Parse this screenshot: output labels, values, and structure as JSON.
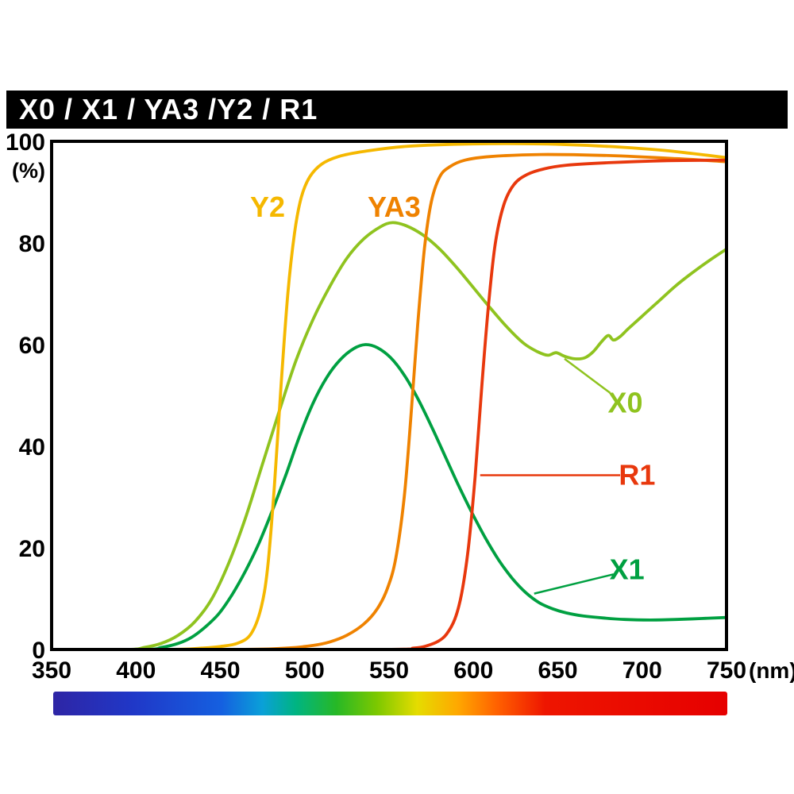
{
  "header": {
    "title": "X0 / X1 / YA3 /Y2 / R1"
  },
  "chart_data": {
    "type": "line",
    "title": "X0 / X1 / YA3 /Y2 / R1",
    "ylabel": "(%)",
    "x_unit": "(nm)",
    "xlim": [
      350,
      750
    ],
    "ylim": [
      0,
      100
    ],
    "x_ticks": [
      350,
      400,
      450,
      500,
      550,
      600,
      650,
      700,
      750
    ],
    "y_ticks": [
      0,
      20,
      40,
      60,
      80,
      100
    ],
    "grid": false,
    "legend": "inline-labels",
    "frame_color": "#000000",
    "series": [
      {
        "name": "X1",
        "color": "#00a041",
        "label": {
          "text": "X1",
          "nm": 691,
          "pct": 15.7
        },
        "leader": {
          "from": [
            636,
            11
          ],
          "to": [
            683,
            14.8
          ]
        },
        "points": [
          [
            350,
            0
          ],
          [
            405,
            0
          ],
          [
            415,
            0.4
          ],
          [
            425,
            1.2
          ],
          [
            433,
            2.4
          ],
          [
            441,
            4.4
          ],
          [
            449,
            7
          ],
          [
            457,
            10.8
          ],
          [
            465,
            15.5
          ],
          [
            473,
            21
          ],
          [
            481,
            27.5
          ],
          [
            489,
            34.5
          ],
          [
            497,
            42
          ],
          [
            505,
            48.5
          ],
          [
            513,
            53.5
          ],
          [
            521,
            57
          ],
          [
            529,
            59.2
          ],
          [
            536,
            60
          ],
          [
            543,
            59.4
          ],
          [
            551,
            57.4
          ],
          [
            559,
            54
          ],
          [
            567,
            49.4
          ],
          [
            575,
            44
          ],
          [
            583,
            38.2
          ],
          [
            591,
            32.4
          ],
          [
            599,
            27
          ],
          [
            607,
            22
          ],
          [
            615,
            17.6
          ],
          [
            623,
            14
          ],
          [
            631,
            11.2
          ],
          [
            639,
            9.2
          ],
          [
            647,
            8
          ],
          [
            655,
            7.2
          ],
          [
            665,
            6.6
          ],
          [
            677,
            6.2
          ],
          [
            690,
            5.9
          ],
          [
            705,
            5.8
          ],
          [
            720,
            5.9
          ],
          [
            735,
            6.1
          ],
          [
            750,
            6.3
          ]
        ]
      },
      {
        "name": "X0",
        "color": "#8fc31f",
        "label": {
          "text": "X0",
          "nm": 690,
          "pct": 48.5
        },
        "leader": {
          "from": [
            654,
            57.2
          ],
          "to": [
            681,
            50.5
          ]
        },
        "points": [
          [
            350,
            0
          ],
          [
            395,
            0
          ],
          [
            405,
            0.4
          ],
          [
            415,
            1.2
          ],
          [
            425,
            2.8
          ],
          [
            435,
            5.5
          ],
          [
            445,
            10
          ],
          [
            455,
            17
          ],
          [
            465,
            26
          ],
          [
            475,
            36.5
          ],
          [
            485,
            47
          ],
          [
            495,
            57
          ],
          [
            505,
            65
          ],
          [
            515,
            71.5
          ],
          [
            525,
            77
          ],
          [
            535,
            80.8
          ],
          [
            545,
            83.2
          ],
          [
            552,
            84
          ],
          [
            560,
            83.4
          ],
          [
            570,
            81.6
          ],
          [
            580,
            78.8
          ],
          [
            590,
            75.2
          ],
          [
            600,
            71.2
          ],
          [
            610,
            67.2
          ],
          [
            620,
            63.4
          ],
          [
            630,
            60.2
          ],
          [
            638,
            58.6
          ],
          [
            644,
            57.9
          ],
          [
            649,
            58.4
          ],
          [
            654,
            57.7
          ],
          [
            660,
            57.2
          ],
          [
            666,
            57.4
          ],
          [
            671,
            58.6
          ],
          [
            676,
            60.6
          ],
          [
            680,
            61.8
          ],
          [
            683,
            60.9
          ],
          [
            687,
            61.6
          ],
          [
            692,
            63.2
          ],
          [
            700,
            65.6
          ],
          [
            710,
            68.6
          ],
          [
            720,
            71.6
          ],
          [
            730,
            74.2
          ],
          [
            740,
            76.6
          ],
          [
            750,
            78.8
          ]
        ]
      },
      {
        "name": "Y2",
        "color": "#f5b800",
        "label": {
          "text": "Y2",
          "nm": 478,
          "pct": 87
        },
        "leader": null,
        "points": [
          [
            350,
            0
          ],
          [
            420,
            0
          ],
          [
            440,
            0.3
          ],
          [
            450,
            0.6
          ],
          [
            460,
            1.2
          ],
          [
            468,
            3
          ],
          [
            474,
            8
          ],
          [
            478,
            16
          ],
          [
            482,
            32
          ],
          [
            486,
            52
          ],
          [
            490,
            70
          ],
          [
            494,
            82
          ],
          [
            498,
            89
          ],
          [
            503,
            93
          ],
          [
            510,
            95.5
          ],
          [
            520,
            97
          ],
          [
            535,
            98
          ],
          [
            560,
            99
          ],
          [
            600,
            99.5
          ],
          [
            640,
            99.5
          ],
          [
            680,
            99
          ],
          [
            710,
            98.3
          ],
          [
            730,
            97.6
          ],
          [
            750,
            96.8
          ]
        ]
      },
      {
        "name": "YA3",
        "color": "#ef8200",
        "label": {
          "text": "YA3",
          "nm": 553,
          "pct": 87
        },
        "leader": null,
        "points": [
          [
            350,
            0
          ],
          [
            460,
            0
          ],
          [
            490,
            0.3
          ],
          [
            505,
            0.8
          ],
          [
            515,
            1.5
          ],
          [
            525,
            2.8
          ],
          [
            535,
            5
          ],
          [
            543,
            8
          ],
          [
            549,
            12
          ],
          [
            554,
            18
          ],
          [
            559,
            30
          ],
          [
            563,
            46
          ],
          [
            567,
            64
          ],
          [
            571,
            79
          ],
          [
            575,
            88
          ],
          [
            580,
            93
          ],
          [
            586,
            95
          ],
          [
            595,
            96.3
          ],
          [
            610,
            97
          ],
          [
            640,
            97.4
          ],
          [
            680,
            97.2
          ],
          [
            720,
            96.6
          ],
          [
            750,
            96
          ]
        ]
      },
      {
        "name": "R1",
        "color": "#e8380d",
        "label": {
          "text": "R1",
          "nm": 697,
          "pct": 34.3
        },
        "leader": {
          "from": [
            604,
            34.3
          ],
          "to": [
            687,
            34.3
          ]
        },
        "points": [
          [
            350,
            0
          ],
          [
            540,
            0
          ],
          [
            565,
            0.3
          ],
          [
            573,
            0.8
          ],
          [
            579,
            1.6
          ],
          [
            584,
            3
          ],
          [
            589,
            6
          ],
          [
            593,
            11
          ],
          [
            597,
            20
          ],
          [
            601,
            34
          ],
          [
            605,
            52
          ],
          [
            609,
            68
          ],
          [
            613,
            80
          ],
          [
            618,
            87.5
          ],
          [
            624,
            91.5
          ],
          [
            632,
            93.5
          ],
          [
            642,
            94.6
          ],
          [
            655,
            95.3
          ],
          [
            680,
            95.8
          ],
          [
            715,
            96.2
          ],
          [
            750,
            96.3
          ]
        ]
      }
    ],
    "spectrum_bar": {
      "stops": [
        {
          "pos": 0.0,
          "color": "#2e25a5"
        },
        {
          "pos": 0.12,
          "color": "#2038c8"
        },
        {
          "pos": 0.25,
          "color": "#1560e0"
        },
        {
          "pos": 0.31,
          "color": "#0aa0d8"
        },
        {
          "pos": 0.36,
          "color": "#00b482"
        },
        {
          "pos": 0.42,
          "color": "#27b826"
        },
        {
          "pos": 0.48,
          "color": "#7cc800"
        },
        {
          "pos": 0.54,
          "color": "#e5dc00"
        },
        {
          "pos": 0.6,
          "color": "#ffa800"
        },
        {
          "pos": 0.66,
          "color": "#ff5f00"
        },
        {
          "pos": 0.73,
          "color": "#ee1500"
        },
        {
          "pos": 1.0,
          "color": "#e60000"
        }
      ]
    }
  }
}
